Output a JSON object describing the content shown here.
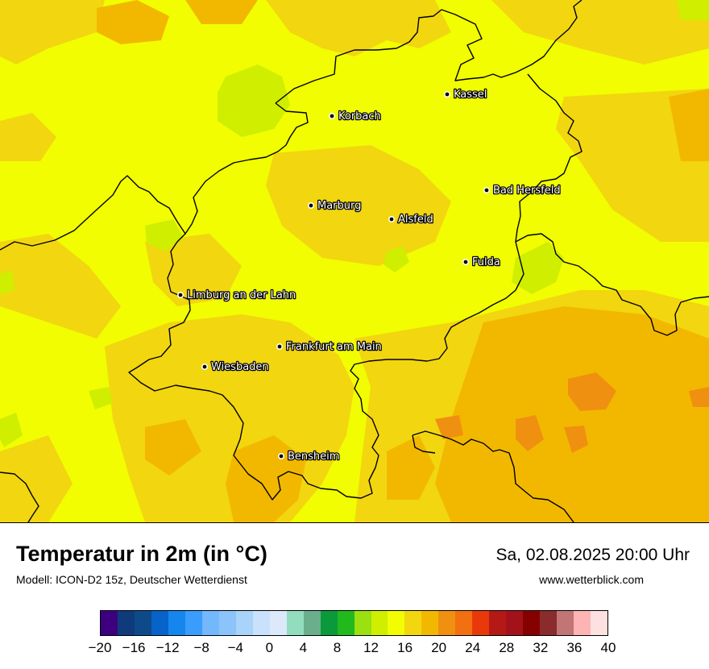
{
  "title": "Temperatur in 2m (in °C)",
  "model": "Modell: ICON-D2 15z, Deutscher Wetterdienst",
  "valid_time": "Sa, 02.08.2025 20:00 Uhr",
  "website": "www.wetterblick.com",
  "cities": [
    {
      "name": "Kassel"
    },
    {
      "name": "Korbach"
    },
    {
      "name": "Bad Hersfeld"
    },
    {
      "name": "Marburg"
    },
    {
      "name": "Alsfeld"
    },
    {
      "name": "Fulda"
    },
    {
      "name": "Limburg an der Lahn"
    },
    {
      "name": "Frankfurt am Main"
    },
    {
      "name": "Wiesbaden"
    },
    {
      "name": "Bensheim"
    }
  ],
  "legend": {
    "unit": "°C",
    "min": -20,
    "max": 40,
    "step": 2,
    "tick_labels": [
      "−20",
      "−16",
      "−12",
      "−8",
      "−4",
      "0",
      "4",
      "8",
      "12",
      "16",
      "20",
      "24",
      "28",
      "32",
      "36",
      "40"
    ],
    "colors": [
      "#3d007f",
      "#0f3a7c",
      "#0e4a8a",
      "#0663c9",
      "#1586ee",
      "#3a9cfb",
      "#73b8fc",
      "#8cc3fb",
      "#a8d3fa",
      "#c9e1fa",
      "#dbe9fb",
      "#92ddbd",
      "#6aae8c",
      "#0a9a3b",
      "#22b91d",
      "#9be010",
      "#cfee00",
      "#f1fd00",
      "#f2d610",
      "#f2b800",
      "#f09010",
      "#f27010",
      "#e9390a",
      "#b51916",
      "#a3121a",
      "#870000",
      "#8a2c2c",
      "#c17575",
      "#fcb4b4",
      "#fde0e0"
    ]
  },
  "map_colors": {
    "t_14_16": "#f1fd00",
    "t_16_18": "#f2d610",
    "t_18_20": "#f2b800",
    "t_20_22": "#f09010",
    "t_12_14": "#cfee00",
    "border": "#000000"
  }
}
